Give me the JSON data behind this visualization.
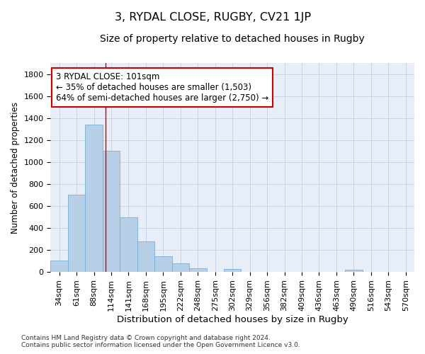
{
  "title": "3, RYDAL CLOSE, RUGBY, CV21 1JP",
  "subtitle": "Size of property relative to detached houses in Rugby",
  "xlabel": "Distribution of detached houses by size in Rugby",
  "ylabel": "Number of detached properties",
  "categories": [
    "34sqm",
    "61sqm",
    "88sqm",
    "114sqm",
    "141sqm",
    "168sqm",
    "195sqm",
    "222sqm",
    "248sqm",
    "275sqm",
    "302sqm",
    "329sqm",
    "356sqm",
    "382sqm",
    "409sqm",
    "436sqm",
    "463sqm",
    "490sqm",
    "516sqm",
    "543sqm",
    "570sqm"
  ],
  "values": [
    105,
    700,
    1340,
    1100,
    495,
    275,
    140,
    75,
    35,
    0,
    25,
    0,
    0,
    0,
    0,
    0,
    0,
    20,
    0,
    0,
    0
  ],
  "bar_color": "#b8cfe8",
  "bar_edge_color": "#7aadd4",
  "vline_x_index": 2.67,
  "annotation_line1": "3 RYDAL CLOSE: 101sqm",
  "annotation_line2": "← 35% of detached houses are smaller (1,503)",
  "annotation_line3": "64% of semi-detached houses are larger (2,750) →",
  "annotation_box_color": "#ffffff",
  "annotation_box_edge_color": "#cc0000",
  "ylim": [
    0,
    1900
  ],
  "yticks": [
    0,
    200,
    400,
    600,
    800,
    1000,
    1200,
    1400,
    1600,
    1800
  ],
  "grid_color": "#c8d4e8",
  "background_color": "#e8eef8",
  "footer_line1": "Contains HM Land Registry data © Crown copyright and database right 2024.",
  "footer_line2": "Contains public sector information licensed under the Open Government Licence v3.0.",
  "title_fontsize": 11.5,
  "subtitle_fontsize": 10,
  "xlabel_fontsize": 9.5,
  "ylabel_fontsize": 8.5,
  "tick_fontsize": 8,
  "annotation_fontsize": 8.5,
  "footer_fontsize": 6.5
}
